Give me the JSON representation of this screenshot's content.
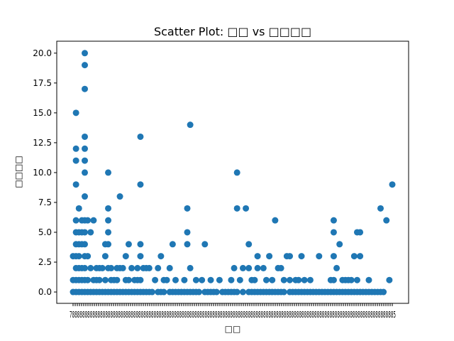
{
  "chart_data": {
    "type": "scatter",
    "title": "Scatter Plot: □□ vs □□□□",
    "xlabel": "□□",
    "ylabel": "□□□□",
    "ylim": [
      -0.95,
      21.0
    ],
    "y_ticks": [
      0.0,
      2.5,
      5.0,
      7.5,
      10.0,
      12.5,
      15.0,
      17.5,
      20.0
    ],
    "y_tick_labels": [
      "0.0",
      "2.5",
      "5.0",
      "7.5",
      "10.0",
      "12.5",
      "15.0",
      "17.5",
      "20.0"
    ],
    "x_axis": {
      "categorical": true,
      "category_count": 151,
      "note_overlapping_labels": "78…85"
    },
    "x_tick_labels_visible": "78888888888888888888888888888888888888888888888888888888888888888888888888888888888888888888888888888888888888888888888888888885",
    "grid": false,
    "marker_color": "#1f77b4",
    "series": [
      {
        "values": [
          [
            0,
            0
          ],
          [
            0,
            1
          ],
          [
            0,
            3
          ],
          [
            1,
            0
          ],
          [
            1,
            1
          ],
          [
            1,
            2
          ],
          [
            1,
            3
          ],
          [
            1,
            4
          ],
          [
            1,
            5
          ],
          [
            1,
            6
          ],
          [
            1,
            9
          ],
          [
            1,
            11
          ],
          [
            1,
            12
          ],
          [
            1,
            15
          ],
          [
            2,
            0
          ],
          [
            2,
            1
          ],
          [
            2,
            2
          ],
          [
            2,
            3
          ],
          [
            2,
            4
          ],
          [
            2,
            5
          ],
          [
            2,
            7
          ],
          [
            3,
            0
          ],
          [
            3,
            1
          ],
          [
            3,
            2
          ],
          [
            3,
            4
          ],
          [
            3,
            5
          ],
          [
            3,
            6
          ],
          [
            4,
            0
          ],
          [
            4,
            1
          ],
          [
            4,
            2
          ],
          [
            4,
            3
          ],
          [
            4,
            4
          ],
          [
            4,
            5
          ],
          [
            4,
            6
          ],
          [
            4,
            8
          ],
          [
            4,
            10
          ],
          [
            4,
            11
          ],
          [
            4,
            12
          ],
          [
            4,
            13
          ],
          [
            4,
            17
          ],
          [
            4,
            19
          ],
          [
            4,
            20
          ],
          [
            5,
            0
          ],
          [
            5,
            1
          ],
          [
            5,
            3
          ],
          [
            5,
            6
          ],
          [
            6,
            0
          ],
          [
            6,
            2
          ],
          [
            6,
            5
          ],
          [
            7,
            0
          ],
          [
            7,
            1
          ],
          [
            7,
            6
          ],
          [
            8,
            0
          ],
          [
            8,
            1
          ],
          [
            8,
            2
          ],
          [
            9,
            0
          ],
          [
            9,
            1
          ],
          [
            9,
            2
          ],
          [
            10,
            0
          ],
          [
            10,
            2
          ],
          [
            11,
            0
          ],
          [
            11,
            1
          ],
          [
            11,
            3
          ],
          [
            11,
            4
          ],
          [
            12,
            0
          ],
          [
            12,
            2
          ],
          [
            12,
            4
          ],
          [
            12,
            5
          ],
          [
            12,
            6
          ],
          [
            12,
            7
          ],
          [
            12,
            10
          ],
          [
            13,
            0
          ],
          [
            13,
            1
          ],
          [
            13,
            2
          ],
          [
            14,
            0
          ],
          [
            14,
            1
          ],
          [
            15,
            0
          ],
          [
            15,
            1
          ],
          [
            15,
            2
          ],
          [
            16,
            0
          ],
          [
            16,
            2
          ],
          [
            16,
            8
          ],
          [
            17,
            0
          ],
          [
            17,
            2
          ],
          [
            18,
            0
          ],
          [
            18,
            1
          ],
          [
            18,
            3
          ],
          [
            19,
            0
          ],
          [
            19,
            1
          ],
          [
            19,
            4
          ],
          [
            20,
            0
          ],
          [
            20,
            2
          ],
          [
            21,
            0
          ],
          [
            21,
            1
          ],
          [
            22,
            0
          ],
          [
            22,
            1
          ],
          [
            22,
            2
          ],
          [
            23,
            0
          ],
          [
            23,
            1
          ],
          [
            23,
            3
          ],
          [
            23,
            4
          ],
          [
            23,
            9
          ],
          [
            23,
            13
          ],
          [
            24,
            0
          ],
          [
            24,
            2
          ],
          [
            25,
            0
          ],
          [
            25,
            2
          ],
          [
            26,
            0
          ],
          [
            26,
            2
          ],
          [
            27,
            0
          ],
          [
            28,
            1
          ],
          [
            29,
            0
          ],
          [
            29,
            2
          ],
          [
            30,
            0
          ],
          [
            30,
            3
          ],
          [
            31,
            0
          ],
          [
            31,
            1
          ],
          [
            32,
            1
          ],
          [
            33,
            0
          ],
          [
            33,
            2
          ],
          [
            34,
            0
          ],
          [
            34,
            4
          ],
          [
            35,
            0
          ],
          [
            35,
            1
          ],
          [
            36,
            0
          ],
          [
            37,
            0
          ],
          [
            38,
            0
          ],
          [
            38,
            1
          ],
          [
            39,
            0
          ],
          [
            39,
            4
          ],
          [
            39,
            5
          ],
          [
            39,
            7
          ],
          [
            40,
            0
          ],
          [
            40,
            2
          ],
          [
            40,
            14
          ],
          [
            41,
            0
          ],
          [
            42,
            0
          ],
          [
            42,
            1
          ],
          [
            43,
            0
          ],
          [
            44,
            1
          ],
          [
            45,
            0
          ],
          [
            45,
            4
          ],
          [
            46,
            0
          ],
          [
            47,
            0
          ],
          [
            47,
            1
          ],
          [
            48,
            0
          ],
          [
            49,
            0
          ],
          [
            50,
            1
          ],
          [
            51,
            0
          ],
          [
            52,
            0
          ],
          [
            53,
            0
          ],
          [
            54,
            0
          ],
          [
            54,
            1
          ],
          [
            55,
            0
          ],
          [
            55,
            2
          ],
          [
            56,
            0
          ],
          [
            56,
            7
          ],
          [
            56,
            10
          ],
          [
            57,
            1
          ],
          [
            58,
            0
          ],
          [
            58,
            2
          ],
          [
            59,
            7
          ],
          [
            60,
            0
          ],
          [
            60,
            2
          ],
          [
            60,
            4
          ],
          [
            61,
            0
          ],
          [
            61,
            1
          ],
          [
            62,
            0
          ],
          [
            62,
            1
          ],
          [
            63,
            0
          ],
          [
            63,
            2
          ],
          [
            63,
            3
          ],
          [
            64,
            0
          ],
          [
            65,
            0
          ],
          [
            65,
            2
          ],
          [
            66,
            0
          ],
          [
            66,
            1
          ],
          [
            67,
            0
          ],
          [
            67,
            3
          ],
          [
            68,
            0
          ],
          [
            68,
            1
          ],
          [
            69,
            0
          ],
          [
            69,
            6
          ],
          [
            70,
            0
          ],
          [
            70,
            2
          ],
          [
            71,
            0
          ],
          [
            71,
            2
          ],
          [
            72,
            0
          ],
          [
            72,
            1
          ],
          [
            73,
            3
          ],
          [
            74,
            0
          ],
          [
            74,
            1
          ],
          [
            74,
            3
          ],
          [
            75,
            0
          ],
          [
            76,
            0
          ],
          [
            76,
            1
          ],
          [
            77,
            0
          ],
          [
            77,
            1
          ],
          [
            78,
            0
          ],
          [
            78,
            3
          ],
          [
            79,
            0
          ],
          [
            79,
            1
          ],
          [
            80,
            0
          ],
          [
            81,
            0
          ],
          [
            81,
            1
          ],
          [
            82,
            0
          ],
          [
            83,
            0
          ],
          [
            84,
            0
          ],
          [
            84,
            3
          ],
          [
            85,
            0
          ],
          [
            86,
            0
          ],
          [
            87,
            0
          ],
          [
            88,
            0
          ],
          [
            88,
            1
          ],
          [
            89,
            0
          ],
          [
            89,
            1
          ],
          [
            89,
            3
          ],
          [
            89,
            5
          ],
          [
            89,
            6
          ],
          [
            90,
            0
          ],
          [
            90,
            2
          ],
          [
            91,
            0
          ],
          [
            91,
            4
          ],
          [
            92,
            0
          ],
          [
            92,
            1
          ],
          [
            93,
            0
          ],
          [
            93,
            1
          ],
          [
            94,
            0
          ],
          [
            94,
            1
          ],
          [
            95,
            0
          ],
          [
            95,
            1
          ],
          [
            96,
            0
          ],
          [
            96,
            3
          ],
          [
            97,
            0
          ],
          [
            97,
            1
          ],
          [
            97,
            5
          ],
          [
            98,
            0
          ],
          [
            98,
            3
          ],
          [
            98,
            5
          ],
          [
            99,
            0
          ],
          [
            100,
            0
          ],
          [
            101,
            0
          ],
          [
            101,
            1
          ],
          [
            102,
            0
          ],
          [
            103,
            0
          ],
          [
            104,
            0
          ],
          [
            105,
            0
          ],
          [
            105,
            7
          ],
          [
            106,
            0
          ],
          [
            107,
            6
          ],
          [
            108,
            1
          ],
          [
            109,
            9
          ]
        ]
      }
    ]
  }
}
